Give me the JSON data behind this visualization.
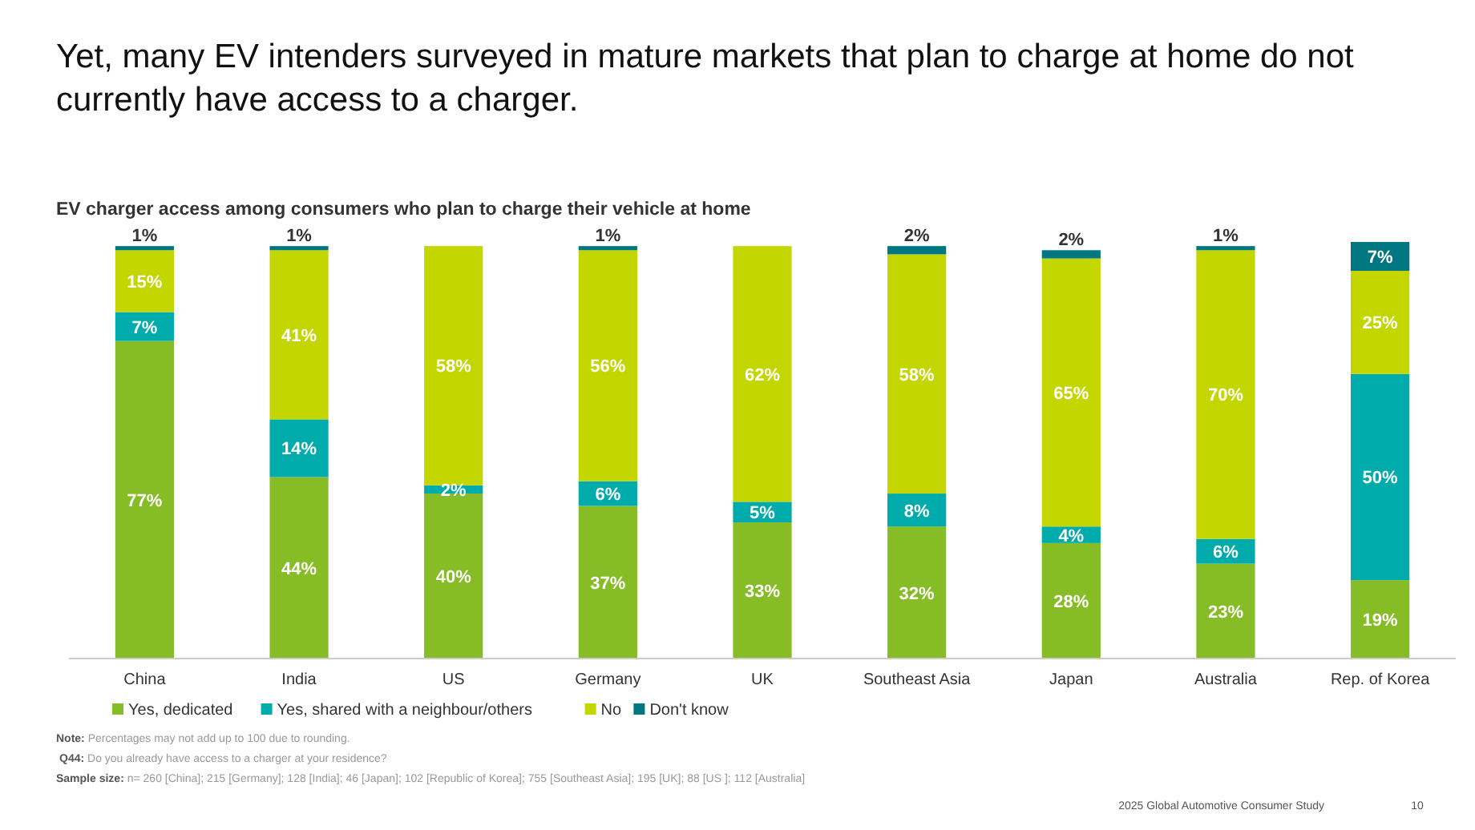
{
  "chart_data": {
    "type": "bar",
    "stacked": true,
    "title": "Yet, many EV intenders surveyed in mature markets that plan to charge at home do not currently have access to a charger.",
    "subtitle": "EV charger access among consumers who plan to charge their vehicle at home",
    "categories": [
      "China",
      "India",
      "US",
      "Germany",
      "UK",
      "Southeast Asia",
      "Japan",
      "Australia",
      "Rep. of Korea"
    ],
    "series": [
      {
        "name": "Yes, dedicated",
        "color": "#86bc25",
        "values": [
          77,
          44,
          40,
          37,
          33,
          32,
          28,
          23,
          19
        ],
        "value_labels": [
          "77%",
          "44%",
          "40%",
          "37%",
          "33%",
          "32%",
          "28%",
          "23%",
          "19%"
        ]
      },
      {
        "name": "Yes, shared with a neighbour/others",
        "color": "#00abab",
        "values": [
          7,
          14,
          2,
          6,
          5,
          8,
          4,
          6,
          50
        ],
        "value_labels": [
          "7%",
          "14%",
          "2%",
          "6%",
          "5%",
          "8%",
          "4%",
          "6%",
          "50%"
        ]
      },
      {
        "name": "No",
        "color": "#c4d600",
        "values": [
          15,
          41,
          58,
          56,
          62,
          58,
          65,
          70,
          25
        ],
        "value_labels": [
          "15%",
          "41%",
          "58%",
          "56%",
          "62%",
          "58%",
          "65%",
          "70%",
          "25%"
        ]
      },
      {
        "name": "Don't know",
        "color": "#007680",
        "values": [
          1,
          1,
          null,
          1,
          null,
          2,
          2,
          1,
          7
        ],
        "value_labels": [
          "1%",
          "1%",
          null,
          "1%",
          null,
          "2%",
          "2%",
          "1%",
          "7%"
        ]
      }
    ],
    "legend": "bottom left",
    "annotations": [
      "Note: Percentages may not add up to 100 due to rounding.",
      "Q44: Do you already have access to a charger at your residence?",
      "Sample size: n= 260 [China]; 215 [Germany]; 128 [India]; 46 [Japan]; 102 [Republic of Korea]; 755 [Southeast Asia]; 195 [UK]; 88 [US ]; 112 [Australia]",
      "2025 Global Automotive Consumer Study",
      "10"
    ]
  }
}
